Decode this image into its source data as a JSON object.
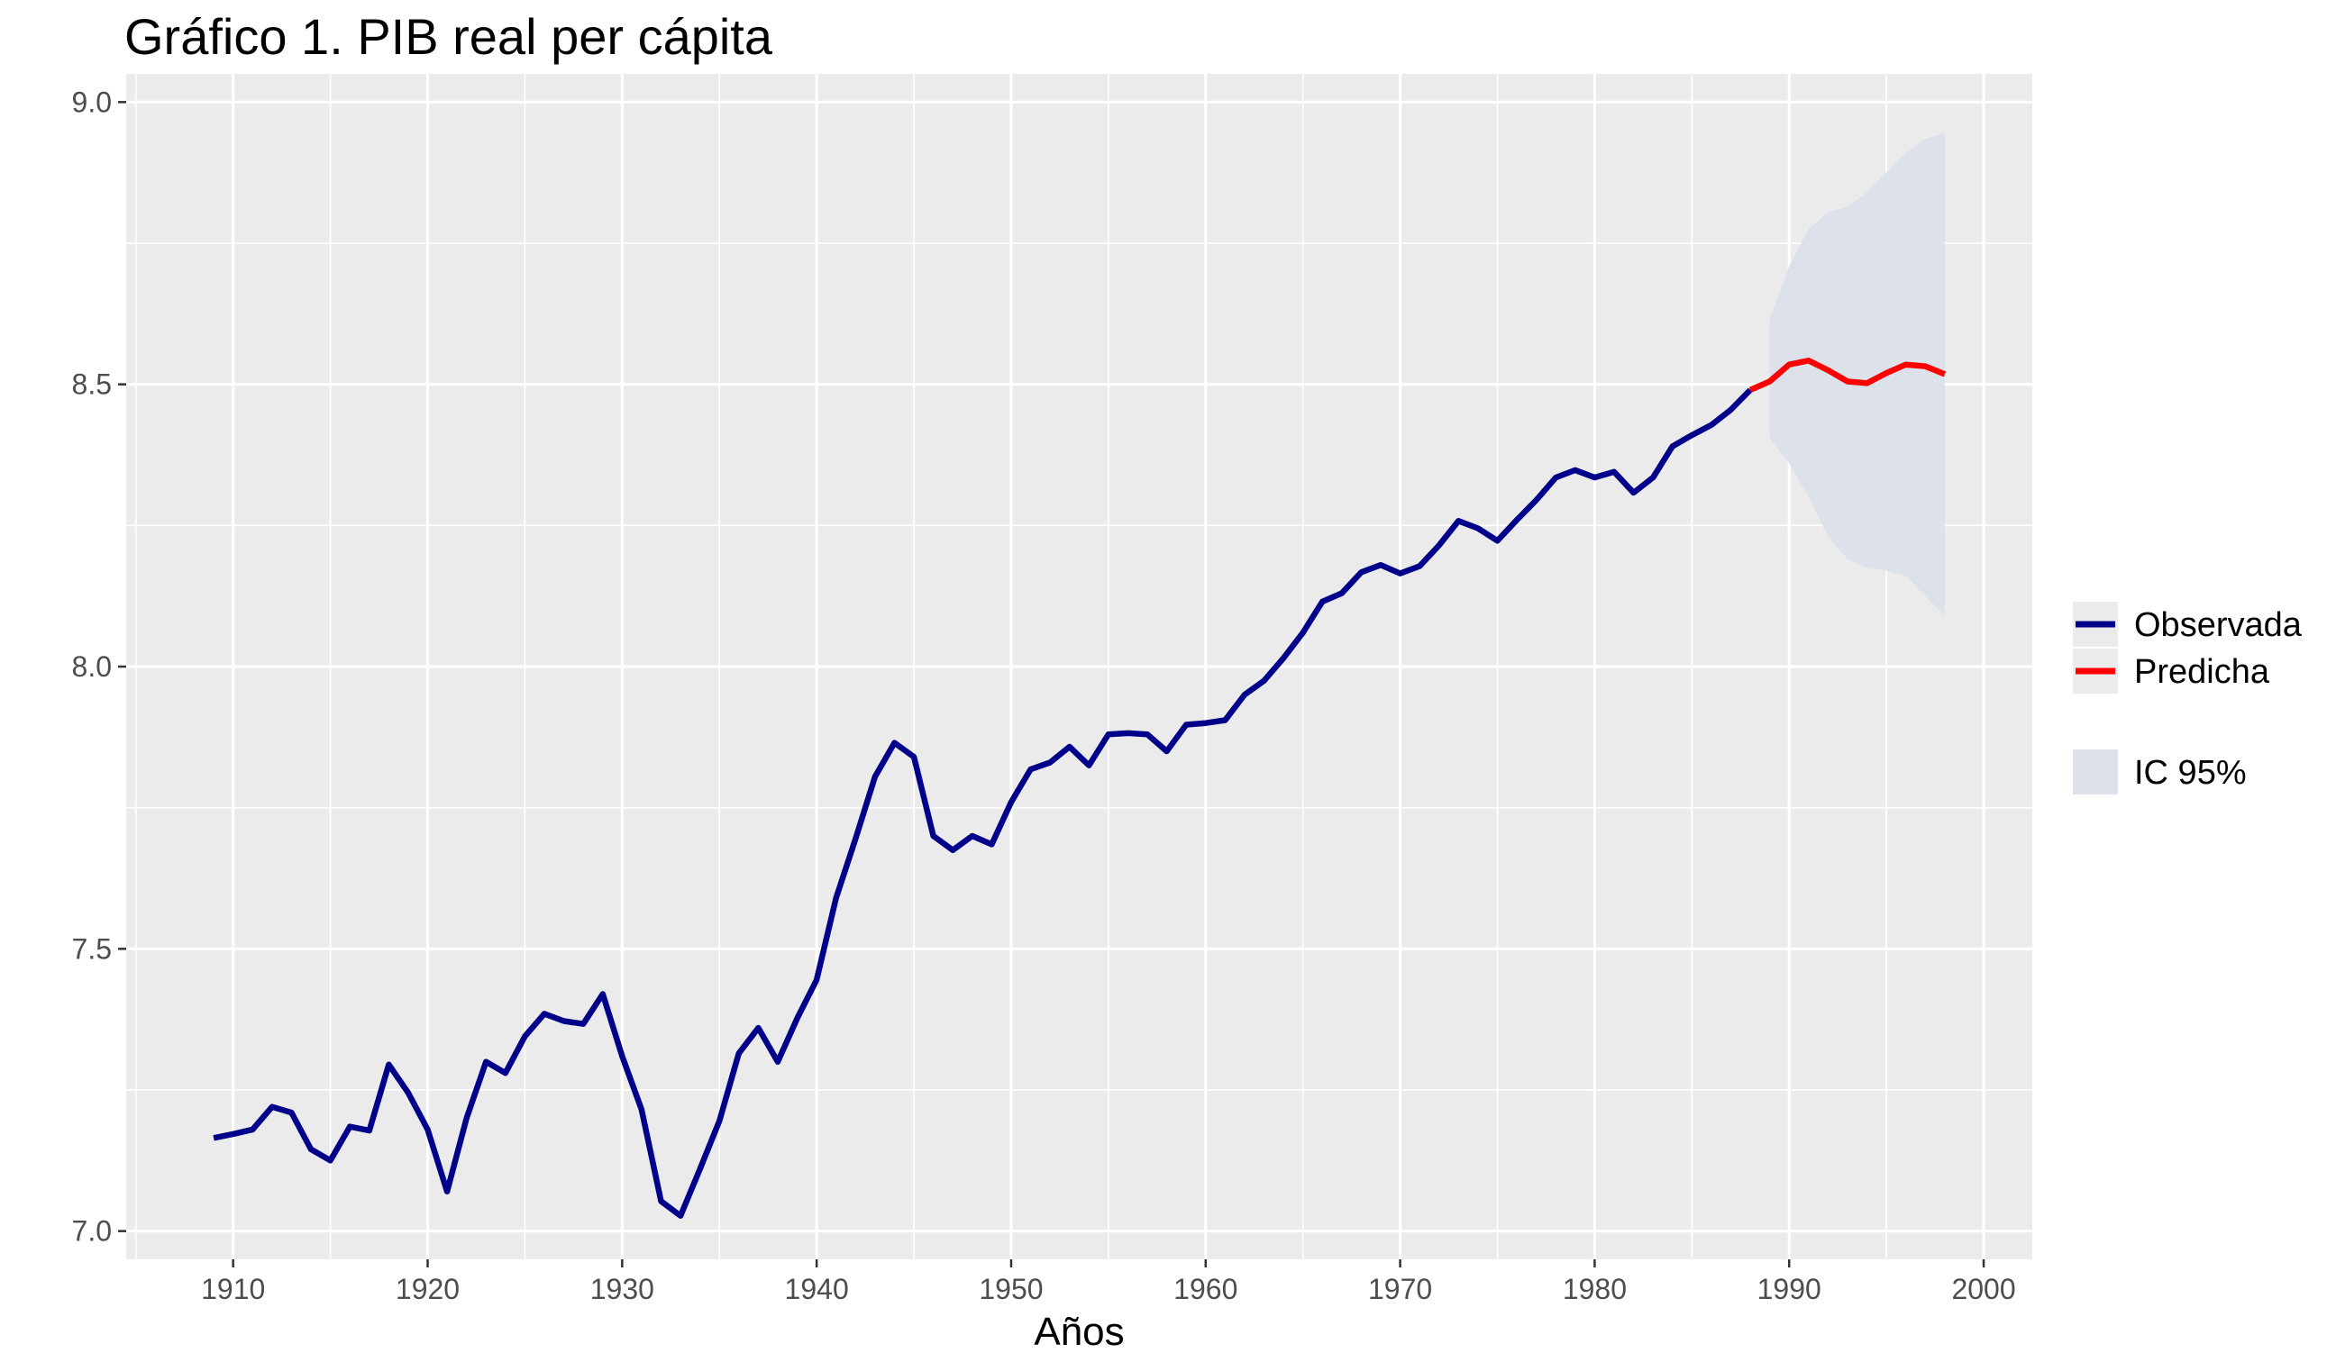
{
  "chart_data": {
    "type": "line",
    "title": "Gráfico 1. PIB real per cápita",
    "xlabel": "Años",
    "ylabel": "",
    "xlim": [
      1904.5,
      2002.5
    ],
    "ylim": [
      6.95,
      9.05
    ],
    "x_ticks": [
      1910,
      1920,
      1930,
      1940,
      1950,
      1960,
      1970,
      1980,
      1990,
      2000
    ],
    "y_ticks": [
      7.0,
      7.5,
      8.0,
      8.5,
      9.0
    ],
    "y_tick_labels": [
      "7.0",
      "7.5",
      "8.0",
      "8.5",
      "9.0"
    ],
    "grid": true,
    "legend_position": "right",
    "colors": {
      "panel": "#ebebeb",
      "grid": "#ffffff",
      "observed": "#00008b",
      "predicted": "#ff0000",
      "ribbon": "#dde2ea",
      "legend_key_bg": "#ebebeb",
      "tick_text": "#4d4d4d"
    },
    "series": [
      {
        "name": "Observada",
        "x": [
          1909,
          1910,
          1911,
          1912,
          1913,
          1914,
          1915,
          1916,
          1917,
          1918,
          1919,
          1920,
          1921,
          1922,
          1923,
          1924,
          1925,
          1926,
          1927,
          1928,
          1929,
          1930,
          1931,
          1932,
          1933,
          1934,
          1935,
          1936,
          1937,
          1938,
          1939,
          1940,
          1941,
          1942,
          1943,
          1944,
          1945,
          1946,
          1947,
          1948,
          1949,
          1950,
          1951,
          1952,
          1953,
          1954,
          1955,
          1956,
          1957,
          1958,
          1959,
          1960,
          1961,
          1962,
          1963,
          1964,
          1965,
          1966,
          1967,
          1968,
          1969,
          1970,
          1971,
          1972,
          1973,
          1974,
          1975,
          1976,
          1977,
          1978,
          1979,
          1980,
          1981,
          1982,
          1983,
          1984,
          1985,
          1986,
          1987,
          1988
        ],
        "y": [
          7.165,
          7.172,
          7.18,
          7.22,
          7.21,
          7.145,
          7.125,
          7.185,
          7.178,
          7.295,
          7.245,
          7.18,
          7.07,
          7.2,
          7.3,
          7.28,
          7.345,
          7.385,
          7.372,
          7.367,
          7.42,
          7.31,
          7.215,
          7.053,
          7.027,
          7.11,
          7.195,
          7.315,
          7.36,
          7.3,
          7.377,
          7.445,
          7.59,
          7.695,
          7.805,
          7.865,
          7.84,
          7.7,
          7.675,
          7.7,
          7.685,
          7.76,
          7.818,
          7.83,
          7.858,
          7.825,
          7.88,
          7.882,
          7.88,
          7.85,
          7.897,
          7.9,
          7.905,
          7.95,
          7.975,
          8.015,
          8.06,
          8.115,
          8.13,
          8.167,
          8.18,
          8.165,
          8.178,
          8.215,
          8.258,
          8.245,
          8.223,
          8.26,
          8.295,
          8.335,
          8.348,
          8.335,
          8.345,
          8.308,
          8.335,
          8.39,
          8.41,
          8.428,
          8.455,
          8.49
        ]
      },
      {
        "name": "Predicha",
        "x": [
          1988,
          1989,
          1990,
          1991,
          1992,
          1993,
          1994,
          1995,
          1996,
          1997,
          1998
        ],
        "y": [
          8.49,
          8.505,
          8.535,
          8.542,
          8.525,
          8.505,
          8.502,
          8.52,
          8.535,
          8.532,
          8.518
        ]
      }
    ],
    "ribbon": {
      "name": "IC 95%",
      "x": [
        1989,
        1990,
        1991,
        1992,
        1993,
        1994,
        1995,
        1996,
        1997,
        1998
      ],
      "lower": [
        8.405,
        8.36,
        8.3,
        8.23,
        8.19,
        8.175,
        8.17,
        8.16,
        8.125,
        8.09
      ],
      "upper": [
        8.615,
        8.71,
        8.775,
        8.805,
        8.815,
        8.84,
        8.875,
        8.91,
        8.935,
        8.945
      ]
    },
    "legend": {
      "lines": [
        "Observada",
        "Predicha"
      ],
      "fill": [
        "IC 95%"
      ]
    }
  }
}
